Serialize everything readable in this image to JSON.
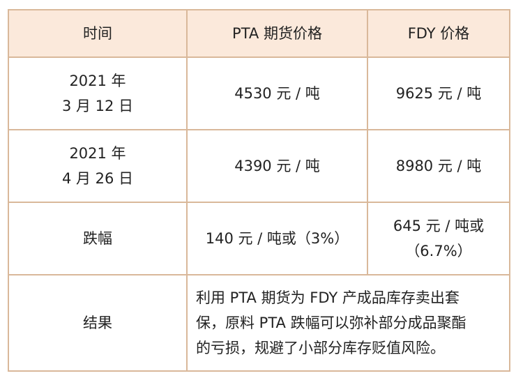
{
  "table": {
    "headers": [
      "时间",
      "PTA 期货价格",
      "FDY 价格"
    ],
    "rows": [
      {
        "time_line1": "2021 年",
        "time_line2": "3 月 12 日",
        "pta": "4530 元 / 吨",
        "fdy_line1": "9625 元 / 吨",
        "fdy_line2": ""
      },
      {
        "time_line1": "2021 年",
        "time_line2": "4 月 26 日",
        "pta": "4390 元 / 吨",
        "fdy_line1": "8980 元 / 吨",
        "fdy_line2": ""
      },
      {
        "time_line1": "跌幅",
        "time_line2": "",
        "pta": "140 元 / 吨或（3%）",
        "fdy_line1": "645 元 / 吨或",
        "fdy_line2": "（6.7%）"
      }
    ],
    "result_label": "结果",
    "result_lines": [
      "利用 PTA 期货为 FDY 产成品库存卖出套",
      "保，原料 PTA 跌幅可以弥补部分成品聚酯",
      "的亏损，规避了小部分库存贬值风险。"
    ]
  }
}
